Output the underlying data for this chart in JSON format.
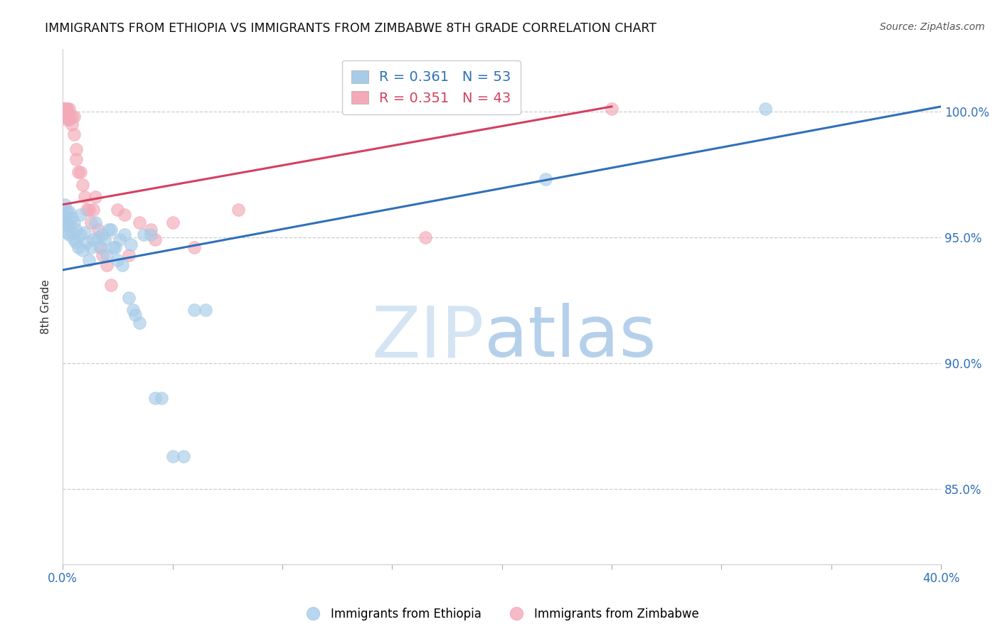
{
  "title": "IMMIGRANTS FROM ETHIOPIA VS IMMIGRANTS FROM ZIMBABWE 8TH GRADE CORRELATION CHART",
  "source": "Source: ZipAtlas.com",
  "ylabel": "8th Grade",
  "y_ticks": [
    0.85,
    0.9,
    0.95,
    1.0
  ],
  "y_tick_labels": [
    "85.0%",
    "90.0%",
    "95.0%",
    "100.0%"
  ],
  "x_ticks": [
    0.0,
    0.05,
    0.1,
    0.15,
    0.2,
    0.25,
    0.3,
    0.35,
    0.4
  ],
  "x_tick_labels": [
    "0.0%",
    "",
    "",
    "",
    "",
    "",
    "",
    "",
    "40.0%"
  ],
  "xlim": [
    0.0,
    0.4
  ],
  "ylim": [
    0.82,
    1.025
  ],
  "ethiopia_R": 0.361,
  "ethiopia_N": 53,
  "zimbabwe_R": 0.351,
  "zimbabwe_N": 43,
  "ethiopia_color": "#a8cce8",
  "zimbabwe_color": "#f4a9b8",
  "ethiopia_line_color": "#3070b8",
  "zimbabwe_line_color": "#d44060",
  "legend_label_ethiopia": "Immigrants from Ethiopia",
  "legend_label_zimbabwe": "Immigrants from Zimbabwe",
  "ethiopia_trend_x": [
    0.0,
    0.4
  ],
  "ethiopia_trend_y": [
    0.937,
    1.002
  ],
  "zimbabwe_trend_x": [
    0.0,
    0.25
  ],
  "zimbabwe_trend_y": [
    0.963,
    1.002
  ],
  "ethiopia_x": [
    0.001,
    0.001,
    0.001,
    0.002,
    0.002,
    0.002,
    0.003,
    0.003,
    0.003,
    0.004,
    0.004,
    0.005,
    0.005,
    0.006,
    0.006,
    0.007,
    0.008,
    0.008,
    0.009,
    0.01,
    0.011,
    0.012,
    0.013,
    0.014,
    0.015,
    0.016,
    0.017,
    0.018,
    0.019,
    0.02,
    0.021,
    0.022,
    0.023,
    0.024,
    0.025,
    0.026,
    0.027,
    0.028,
    0.03,
    0.031,
    0.032,
    0.033,
    0.035,
    0.037,
    0.04,
    0.042,
    0.045,
    0.05,
    0.055,
    0.06,
    0.065,
    0.22,
    0.32
  ],
  "ethiopia_y": [
    0.963,
    0.958,
    0.955,
    0.96,
    0.956,
    0.952,
    0.96,
    0.955,
    0.951,
    0.958,
    0.952,
    0.956,
    0.949,
    0.953,
    0.948,
    0.946,
    0.959,
    0.951,
    0.945,
    0.952,
    0.948,
    0.941,
    0.946,
    0.949,
    0.956,
    0.95,
    0.946,
    0.951,
    0.949,
    0.943,
    0.953,
    0.953,
    0.946,
    0.946,
    0.941,
    0.949,
    0.939,
    0.951,
    0.926,
    0.947,
    0.921,
    0.919,
    0.916,
    0.951,
    0.951,
    0.886,
    0.886,
    0.863,
    0.863,
    0.921,
    0.921,
    0.973,
    1.001
  ],
  "zimbabwe_x": [
    0.001,
    0.001,
    0.001,
    0.001,
    0.001,
    0.002,
    0.002,
    0.002,
    0.002,
    0.003,
    0.003,
    0.003,
    0.004,
    0.004,
    0.005,
    0.005,
    0.006,
    0.006,
    0.007,
    0.008,
    0.009,
    0.01,
    0.011,
    0.012,
    0.013,
    0.014,
    0.015,
    0.016,
    0.017,
    0.018,
    0.02,
    0.022,
    0.025,
    0.028,
    0.03,
    0.035,
    0.04,
    0.042,
    0.05,
    0.06,
    0.08,
    0.25,
    0.165
  ],
  "zimbabwe_y": [
    1.001,
    1.001,
    1.001,
    1.001,
    0.998,
    1.001,
    1.001,
    0.999,
    0.997,
    1.001,
    0.999,
    0.997,
    0.998,
    0.995,
    0.998,
    0.991,
    0.985,
    0.981,
    0.976,
    0.976,
    0.971,
    0.966,
    0.961,
    0.961,
    0.956,
    0.961,
    0.966,
    0.953,
    0.946,
    0.943,
    0.939,
    0.931,
    0.961,
    0.959,
    0.943,
    0.956,
    0.953,
    0.949,
    0.956,
    0.946,
    0.961,
    1.001,
    0.95
  ]
}
